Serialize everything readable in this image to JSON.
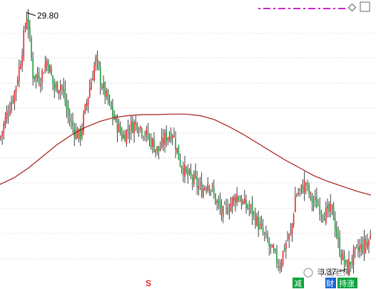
{
  "chart_data": {
    "type": "candlestick",
    "title": "",
    "xlabel": "",
    "ylabel": "",
    "grid": true,
    "ylim": [
      3.37,
      29.8
    ],
    "high_label": "29.80",
    "low_label": "3.37",
    "up_color": "#e8262a",
    "down_color": "#1f9e3d",
    "wick_color": "#111111",
    "moving_average": {
      "color": "#a51b1b",
      "points": [
        [
          0,
          12.1
        ],
        [
          20,
          12.8
        ],
        [
          40,
          13.8
        ],
        [
          60,
          15.0
        ],
        [
          80,
          16.2
        ],
        [
          100,
          17.2
        ],
        [
          120,
          18.0
        ],
        [
          140,
          18.6
        ],
        [
          160,
          19.0
        ],
        [
          180,
          19.2
        ],
        [
          200,
          19.3
        ],
        [
          220,
          19.3
        ],
        [
          240,
          19.35
        ],
        [
          260,
          19.35
        ],
        [
          280,
          19.2
        ],
        [
          300,
          18.8
        ],
        [
          320,
          18.1
        ],
        [
          340,
          17.3
        ],
        [
          360,
          16.4
        ],
        [
          380,
          15.5
        ],
        [
          400,
          14.6
        ],
        [
          420,
          13.8
        ],
        [
          440,
          13.0
        ],
        [
          460,
          12.4
        ],
        [
          480,
          11.9
        ],
        [
          500,
          11.4
        ],
        [
          520,
          11.0
        ]
      ]
    },
    "price_path": [
      [
        0,
        16.8
      ],
      [
        10,
        19.5
      ],
      [
        20,
        21.5
      ],
      [
        28,
        24.5
      ],
      [
        38,
        29.8
      ],
      [
        46,
        23.5
      ],
      [
        56,
        23.0
      ],
      [
        66,
        25.0
      ],
      [
        76,
        22.0
      ],
      [
        86,
        22.5
      ],
      [
        96,
        19.0
      ],
      [
        106,
        17.5
      ],
      [
        112,
        17.0
      ],
      [
        124,
        21.5
      ],
      [
        134,
        25.0
      ],
      [
        142,
        22.5
      ],
      [
        152,
        20.5
      ],
      [
        162,
        18.5
      ],
      [
        172,
        17.0
      ],
      [
        182,
        18.0
      ],
      [
        192,
        18.5
      ],
      [
        202,
        17.5
      ],
      [
        212,
        16.5
      ],
      [
        222,
        15.5
      ],
      [
        232,
        17.0
      ],
      [
        242,
        17.5
      ],
      [
        252,
        14.5
      ],
      [
        262,
        13.0
      ],
      [
        272,
        12.5
      ],
      [
        282,
        11.5
      ],
      [
        292,
        12.5
      ],
      [
        302,
        10.5
      ],
      [
        312,
        9.0
      ],
      [
        322,
        10.0
      ],
      [
        332,
        11.0
      ],
      [
        342,
        10.0
      ],
      [
        352,
        9.5
      ],
      [
        362,
        8.0
      ],
      [
        372,
        6.5
      ],
      [
        382,
        5.0
      ],
      [
        392,
        3.8
      ],
      [
        400,
        6.0
      ],
      [
        408,
        7.0
      ],
      [
        414,
        11.0
      ],
      [
        422,
        11.5
      ],
      [
        428,
        12.3
      ],
      [
        436,
        10.5
      ],
      [
        446,
        10.0
      ],
      [
        456,
        9.0
      ],
      [
        466,
        9.5
      ],
      [
        474,
        6.0
      ],
      [
        480,
        4.5
      ],
      [
        486,
        3.37
      ],
      [
        494,
        4.5
      ],
      [
        504,
        5.5
      ],
      [
        514,
        6.0
      ],
      [
        520,
        6.8
      ]
    ]
  },
  "watermark": "年钱老师",
  "badges": [
    {
      "label": "减",
      "color": "#0aa33c"
    },
    {
      "label": "财",
      "color": "#1765d8"
    },
    {
      "label": "持涨",
      "color": "#0aa33c"
    }
  ],
  "signal_marker": "S",
  "signal_color": "#e8262a",
  "legend_color": "#d020d0",
  "corner_icon": "diamond-icon",
  "corner_box_icon": "square-icon"
}
